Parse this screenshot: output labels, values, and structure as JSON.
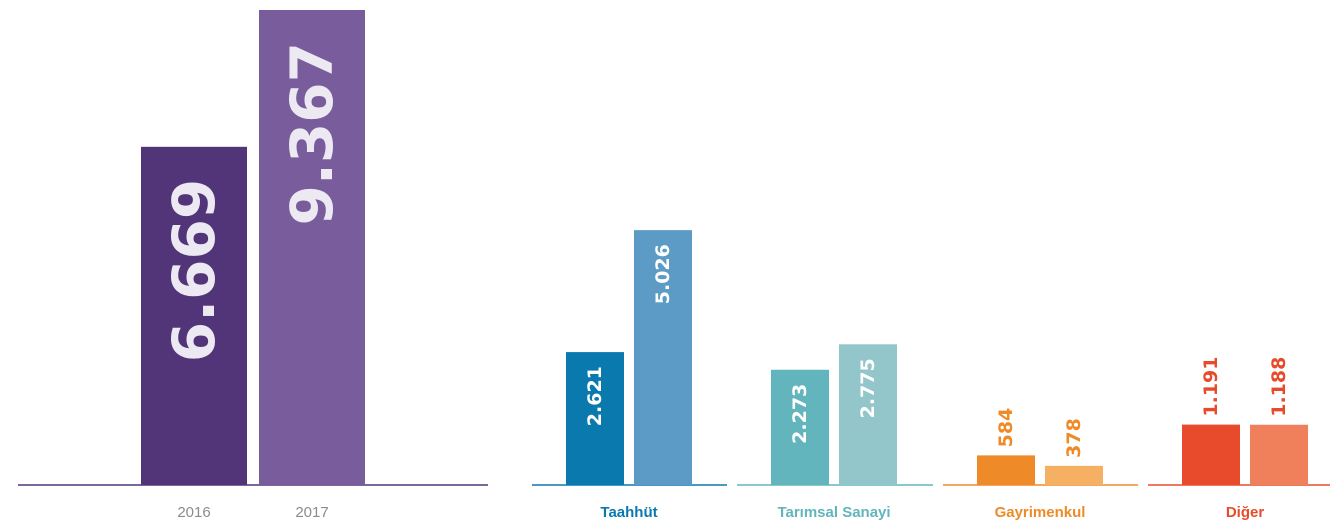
{
  "chart_data": [
    {
      "type": "bar",
      "categories": [
        "2016",
        "2017"
      ],
      "values": [
        6669,
        9367
      ],
      "value_labels": [
        "6.669",
        "9.367"
      ],
      "colors": [
        "#523479",
        "#795c9b"
      ],
      "axis_color": "#523479",
      "tick_color": "#8c8c8c",
      "ylim": [
        0,
        9367
      ],
      "grid": false,
      "title": "",
      "xlabel": "",
      "ylabel": ""
    },
    {
      "type": "bar",
      "categories": [
        "Taahhüt",
        "Tarımsal Sanayi",
        "Gayrimenkul",
        "Diğer"
      ],
      "series": [
        {
          "values": [
            2621,
            2273,
            584,
            1191
          ],
          "value_labels": [
            "2.621",
            "2.273",
            "584",
            "1.191"
          ]
        },
        {
          "values": [
            5026,
            2775,
            378,
            1188
          ],
          "value_labels": [
            "5.026",
            "2.775",
            "378",
            "1.188"
          ]
        }
      ],
      "group_colors": [
        {
          "first": "#0a79ad",
          "second": "#5b9bc6",
          "text": "#0a79ad"
        },
        {
          "first": "#62b5bd",
          "second": "#92c6cb",
          "text": "#62b5bd"
        },
        {
          "first": "#ee8b28",
          "second": "#f6b064",
          "text": "#ee8b28"
        },
        {
          "first": "#e84b2b",
          "second": "#f07f5c",
          "text": "#e84b2b"
        }
      ],
      "ylim": [
        0,
        9367
      ],
      "grid": false,
      "title": "",
      "xlabel": "",
      "ylabel": ""
    }
  ]
}
